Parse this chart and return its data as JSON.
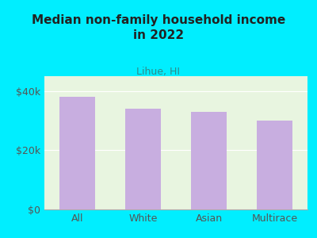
{
  "title_line1": "Median non-family household income",
  "title_line2": "in 2022",
  "subtitle": "Lihue, HI",
  "categories": [
    "All",
    "White",
    "Asian",
    "Multirace"
  ],
  "values": [
    38000,
    34000,
    33000,
    30000
  ],
  "bar_color": "#c8aee0",
  "background_color": "#00eeff",
  "plot_bg_color_top": "#e8f5e0",
  "plot_bg_color_bottom": "#f5f5e8",
  "title_color": "#222222",
  "subtitle_color": "#2e8b8b",
  "tick_label_color": "#555555",
  "ylabel_ticks": [
    0,
    20000,
    40000
  ],
  "ylabel_labels": [
    "$0",
    "$20k",
    "$40k"
  ],
  "ylim": [
    0,
    45000
  ],
  "bar_width": 0.55
}
